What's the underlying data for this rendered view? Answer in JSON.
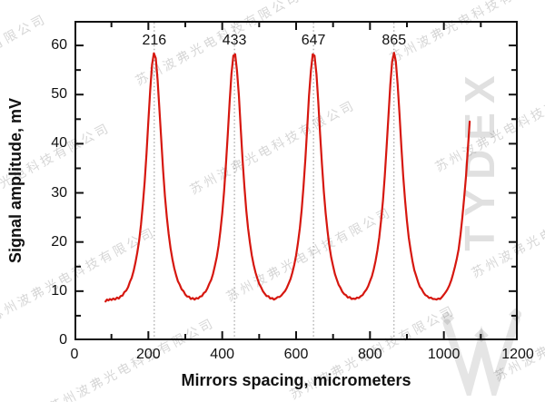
{
  "watermarks": {
    "company_text": "苏州波弗光电科技有限公司",
    "brand_text": "TYDEX",
    "company_color": "rgba(120,120,120,0.30)",
    "brand_color": "rgba(0,0,0,0.12)"
  },
  "chart_data": {
    "type": "line",
    "title": "",
    "xlabel": "Mirrors spacing, micrometers",
    "ylabel": "Signal amplitude, mV",
    "xlim": [
      0,
      1200
    ],
    "ylim": [
      0,
      65
    ],
    "x_major_ticks": [
      0,
      200,
      400,
      600,
      800,
      1000,
      1200
    ],
    "x_minor_ticks": [
      100,
      300,
      500,
      700,
      900,
      1100
    ],
    "y_major_ticks": [
      0,
      10,
      20,
      30,
      40,
      50,
      60
    ],
    "y_minor_ticks": [
      5,
      15,
      25,
      35,
      45,
      55
    ],
    "grid": "none",
    "legend": "none",
    "guide_line_color": "#909090",
    "annotations": [
      {
        "label": "216",
        "x": 216,
        "guide_line": true
      },
      {
        "label": "433",
        "x": 433,
        "guide_line": true
      },
      {
        "label": "647",
        "x": 647,
        "guide_line": true
      },
      {
        "label": "865",
        "x": 865,
        "guide_line": true
      }
    ],
    "series": [
      {
        "name": "signal",
        "color": "#d6170f",
        "points": [
          [
            84,
            7.9
          ],
          [
            88,
            8.3
          ],
          [
            92,
            8.1
          ],
          [
            96,
            8.4
          ],
          [
            100,
            8.2
          ],
          [
            105,
            8.5
          ],
          [
            110,
            8.3
          ],
          [
            115,
            8.7
          ],
          [
            120,
            8.5
          ],
          [
            125,
            9.0
          ],
          [
            130,
            9.1
          ],
          [
            135,
            9.8
          ],
          [
            140,
            10.1
          ],
          [
            145,
            10.8
          ],
          [
            150,
            11.9
          ],
          [
            155,
            12.7
          ],
          [
            160,
            14.1
          ],
          [
            165,
            15.8
          ],
          [
            170,
            17.8
          ],
          [
            175,
            20.3
          ],
          [
            180,
            23.5
          ],
          [
            185,
            27.5
          ],
          [
            190,
            32.3
          ],
          [
            195,
            38.0
          ],
          [
            200,
            44.5
          ],
          [
            205,
            51.0
          ],
          [
            210,
            56.1
          ],
          [
            215,
            58.4
          ],
          [
            220,
            57.4
          ],
          [
            225,
            53.0
          ],
          [
            230,
            47.0
          ],
          [
            235,
            40.6
          ],
          [
            240,
            34.5
          ],
          [
            245,
            29.3
          ],
          [
            250,
            25.0
          ],
          [
            255,
            21.6
          ],
          [
            260,
            18.8
          ],
          [
            265,
            16.5
          ],
          [
            270,
            14.7
          ],
          [
            275,
            13.3
          ],
          [
            280,
            12.0
          ],
          [
            285,
            11.3
          ],
          [
            290,
            10.4
          ],
          [
            295,
            10.0
          ],
          [
            300,
            9.3
          ],
          [
            305,
            8.9
          ],
          [
            310,
            8.9
          ],
          [
            315,
            8.4
          ],
          [
            320,
            8.6
          ],
          [
            325,
            8.3
          ],
          [
            330,
            8.6
          ],
          [
            335,
            8.5
          ],
          [
            340,
            8.9
          ],
          [
            345,
            9.0
          ],
          [
            350,
            9.6
          ],
          [
            355,
            9.9
          ],
          [
            360,
            10.6
          ],
          [
            365,
            11.5
          ],
          [
            370,
            12.3
          ],
          [
            375,
            13.5
          ],
          [
            380,
            15.1
          ],
          [
            385,
            16.9
          ],
          [
            390,
            19.2
          ],
          [
            395,
            22.2
          ],
          [
            400,
            25.9
          ],
          [
            405,
            30.3
          ],
          [
            410,
            35.7
          ],
          [
            415,
            42.0
          ],
          [
            420,
            48.5
          ],
          [
            425,
            54.2
          ],
          [
            430,
            57.9
          ],
          [
            435,
            58.2
          ],
          [
            440,
            54.9
          ],
          [
            445,
            49.8
          ],
          [
            450,
            43.2
          ],
          [
            455,
            36.9
          ],
          [
            460,
            31.2
          ],
          [
            465,
            26.5
          ],
          [
            470,
            22.8
          ],
          [
            475,
            19.8
          ],
          [
            480,
            17.3
          ],
          [
            485,
            15.4
          ],
          [
            490,
            13.8
          ],
          [
            495,
            12.6
          ],
          [
            500,
            11.5
          ],
          [
            505,
            10.8
          ],
          [
            510,
            10.0
          ],
          [
            515,
            9.5
          ],
          [
            520,
            9.0
          ],
          [
            525,
            9.0
          ],
          [
            530,
            8.5
          ],
          [
            535,
            8.6
          ],
          [
            540,
            8.3
          ],
          [
            545,
            8.5
          ],
          [
            550,
            8.8
          ],
          [
            555,
            8.8
          ],
          [
            560,
            9.1
          ],
          [
            565,
            9.6
          ],
          [
            570,
            10.0
          ],
          [
            575,
            10.7
          ],
          [
            580,
            11.6
          ],
          [
            585,
            12.5
          ],
          [
            590,
            13.8
          ],
          [
            595,
            15.4
          ],
          [
            600,
            17.3
          ],
          [
            605,
            19.8
          ],
          [
            610,
            22.8
          ],
          [
            615,
            26.5
          ],
          [
            620,
            31.2
          ],
          [
            625,
            36.9
          ],
          [
            630,
            43.2
          ],
          [
            635,
            49.8
          ],
          [
            640,
            54.9
          ],
          [
            645,
            58.2
          ],
          [
            650,
            57.9
          ],
          [
            655,
            54.2
          ],
          [
            660,
            48.5
          ],
          [
            665,
            42.0
          ],
          [
            670,
            35.7
          ],
          [
            675,
            30.3
          ],
          [
            680,
            25.9
          ],
          [
            685,
            22.2
          ],
          [
            690,
            19.2
          ],
          [
            695,
            16.9
          ],
          [
            700,
            15.1
          ],
          [
            705,
            13.5
          ],
          [
            710,
            12.4
          ],
          [
            715,
            11.3
          ],
          [
            720,
            10.7
          ],
          [
            725,
            9.9
          ],
          [
            730,
            9.4
          ],
          [
            735,
            9.2
          ],
          [
            740,
            8.7
          ],
          [
            745,
            8.8
          ],
          [
            750,
            8.4
          ],
          [
            755,
            8.5
          ],
          [
            760,
            8.4
          ],
          [
            765,
            8.7
          ],
          [
            770,
            8.6
          ],
          [
            775,
            9.0
          ],
          [
            780,
            9.2
          ],
          [
            785,
            9.8
          ],
          [
            790,
            10.3
          ],
          [
            795,
            11.0
          ],
          [
            800,
            12.0
          ],
          [
            805,
            13.0
          ],
          [
            810,
            14.4
          ],
          [
            815,
            16.1
          ],
          [
            820,
            18.3
          ],
          [
            825,
            20.9
          ],
          [
            830,
            24.3
          ],
          [
            835,
            28.4
          ],
          [
            840,
            33.4
          ],
          [
            845,
            39.3
          ],
          [
            850,
            45.8
          ],
          [
            855,
            52.0
          ],
          [
            860,
            56.7
          ],
          [
            865,
            58.5
          ],
          [
            870,
            56.7
          ],
          [
            875,
            52.0
          ],
          [
            880,
            45.8
          ],
          [
            885,
            39.3
          ],
          [
            890,
            33.4
          ],
          [
            895,
            28.4
          ],
          [
            900,
            24.3
          ],
          [
            905,
            20.9
          ],
          [
            910,
            18.3
          ],
          [
            915,
            16.1
          ],
          [
            920,
            14.3
          ],
          [
            925,
            13.1
          ],
          [
            930,
            11.9
          ],
          [
            935,
            10.9
          ],
          [
            940,
            10.4
          ],
          [
            945,
            9.7
          ],
          [
            950,
            9.2
          ],
          [
            955,
            9.0
          ],
          [
            960,
            8.6
          ],
          [
            965,
            8.7
          ],
          [
            970,
            8.4
          ],
          [
            975,
            8.4
          ],
          [
            980,
            8.3
          ],
          [
            985,
            8.5
          ],
          [
            990,
            8.4
          ],
          [
            995,
            8.8
          ],
          [
            1000,
            9.3
          ],
          [
            1005,
            9.8
          ],
          [
            1010,
            10.4
          ],
          [
            1015,
            11.2
          ],
          [
            1020,
            12.2
          ],
          [
            1025,
            13.5
          ],
          [
            1030,
            15.0
          ],
          [
            1035,
            16.6
          ],
          [
            1040,
            18.5
          ],
          [
            1045,
            21.5
          ],
          [
            1050,
            25.0
          ],
          [
            1055,
            29.0
          ],
          [
            1060,
            33.5
          ],
          [
            1065,
            39.0
          ],
          [
            1070,
            44.5
          ]
        ]
      }
    ]
  }
}
